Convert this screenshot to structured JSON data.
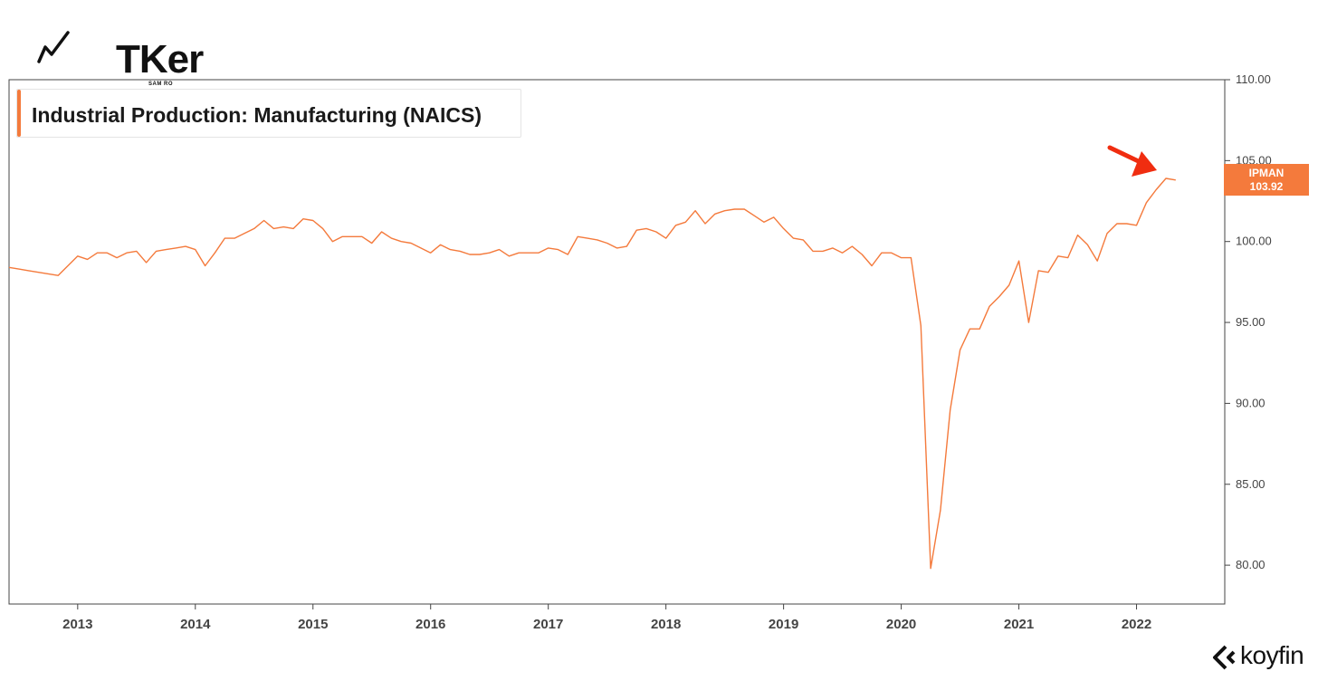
{
  "brand": {
    "name": "TKer",
    "subtitle": "SAM RO"
  },
  "watermark": {
    "name": "koyfin"
  },
  "legend": {
    "label": "Industrial Production: Manufacturing (NAICS)",
    "color": "#f47a3c"
  },
  "badge": {
    "ticker": "IPMAN",
    "value": "103.92",
    "color": "#f47a3c"
  },
  "chart_data": {
    "type": "line",
    "title": "Industrial Production: Manufacturing (NAICS)",
    "x_tick_labels": [
      "2013",
      "2014",
      "2015",
      "2016",
      "2017",
      "2018",
      "2019",
      "2020",
      "2021",
      "2022"
    ],
    "y_tick_labels": [
      "80.00",
      "85.00",
      "90.00",
      "95.00",
      "100.00",
      "105.00",
      "110.00"
    ],
    "y_ticks": [
      80,
      85,
      90,
      95,
      100,
      105,
      110
    ],
    "ylim": [
      77.6,
      110.0
    ],
    "xlim": [
      "2012-06",
      "2022-10"
    ],
    "grid": false,
    "legend_position": "top-left",
    "series": [
      {
        "name": "IPMAN",
        "color": "#f47a3c",
        "x": [
          "2012-06",
          "2012-07",
          "2012-08",
          "2012-09",
          "2012-10",
          "2012-11",
          "2012-12",
          "2013-01",
          "2013-02",
          "2013-03",
          "2013-04",
          "2013-05",
          "2013-06",
          "2013-07",
          "2013-08",
          "2013-09",
          "2013-10",
          "2013-11",
          "2013-12",
          "2014-01",
          "2014-02",
          "2014-03",
          "2014-04",
          "2014-05",
          "2014-06",
          "2014-07",
          "2014-08",
          "2014-09",
          "2014-10",
          "2014-11",
          "2014-12",
          "2015-01",
          "2015-02",
          "2015-03",
          "2015-04",
          "2015-05",
          "2015-06",
          "2015-07",
          "2015-08",
          "2015-09",
          "2015-10",
          "2015-11",
          "2015-12",
          "2016-01",
          "2016-02",
          "2016-03",
          "2016-04",
          "2016-05",
          "2016-06",
          "2016-07",
          "2016-08",
          "2016-09",
          "2016-10",
          "2016-11",
          "2016-12",
          "2017-01",
          "2017-02",
          "2017-03",
          "2017-04",
          "2017-05",
          "2017-06",
          "2017-07",
          "2017-08",
          "2017-09",
          "2017-10",
          "2017-11",
          "2017-12",
          "2018-01",
          "2018-02",
          "2018-03",
          "2018-04",
          "2018-05",
          "2018-06",
          "2018-07",
          "2018-08",
          "2018-09",
          "2018-10",
          "2018-11",
          "2018-12",
          "2019-01",
          "2019-02",
          "2019-03",
          "2019-04",
          "2019-05",
          "2019-06",
          "2019-07",
          "2019-08",
          "2019-09",
          "2019-10",
          "2019-11",
          "2019-12",
          "2020-01",
          "2020-02",
          "2020-03",
          "2020-04",
          "2020-05",
          "2020-06",
          "2020-07",
          "2020-08",
          "2020-09",
          "2020-10",
          "2020-11",
          "2020-12",
          "2021-01",
          "2021-02",
          "2021-03",
          "2021-04",
          "2021-05",
          "2021-06",
          "2021-07",
          "2021-08",
          "2021-09",
          "2021-10",
          "2021-11",
          "2021-12",
          "2022-01",
          "2022-02",
          "2022-03",
          "2022-04",
          "2022-05"
        ],
        "values": [
          98.4,
          98.3,
          98.2,
          98.1,
          98.0,
          97.9,
          98.5,
          99.1,
          98.9,
          99.3,
          99.3,
          99.0,
          99.3,
          99.4,
          98.7,
          99.4,
          99.5,
          99.6,
          99.7,
          99.5,
          98.5,
          99.3,
          100.2,
          100.2,
          100.5,
          100.8,
          101.3,
          100.8,
          100.9,
          100.8,
          101.4,
          101.3,
          100.8,
          100.0,
          100.3,
          100.3,
          100.3,
          99.9,
          100.6,
          100.2,
          100.0,
          99.9,
          99.6,
          99.3,
          99.8,
          99.5,
          99.4,
          99.2,
          99.2,
          99.3,
          99.5,
          99.1,
          99.3,
          99.3,
          99.3,
          99.6,
          99.5,
          99.2,
          100.3,
          100.2,
          100.1,
          99.9,
          99.6,
          99.7,
          100.7,
          100.8,
          100.6,
          100.2,
          101.0,
          101.2,
          101.9,
          101.1,
          101.7,
          101.9,
          102.0,
          102.0,
          101.6,
          101.2,
          101.5,
          100.8,
          100.2,
          100.1,
          99.4,
          99.4,
          99.6,
          99.3,
          99.7,
          99.2,
          98.5,
          99.3,
          99.3,
          99.0,
          99.0,
          94.8,
          79.8,
          83.4,
          89.6,
          93.3,
          94.6,
          94.6,
          96.0,
          96.6,
          97.3,
          98.8,
          95.0,
          98.2,
          98.1,
          99.1,
          99.0,
          100.4,
          99.8,
          98.8,
          100.5,
          101.1,
          101.1,
          101.0,
          102.4,
          103.2,
          103.9,
          103.8
        ]
      }
    ]
  }
}
